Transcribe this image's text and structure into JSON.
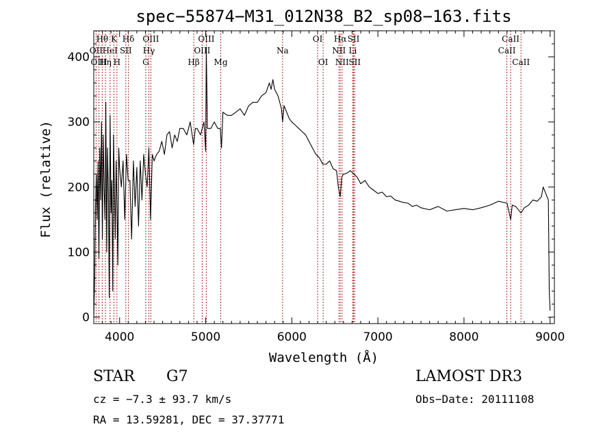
{
  "chart_data": {
    "type": "line",
    "title": "spec−55874−M31_012N38_B2_sp08−163.fits",
    "xlabel": "Wavelength (Å)",
    "ylabel": "Flux (relative)",
    "xlim": [
      3700,
      9050
    ],
    "ylim": [
      -10,
      440
    ],
    "x_ticks": [
      4000,
      5000,
      6000,
      7000,
      8000,
      9000
    ],
    "y_ticks": [
      0,
      100,
      200,
      300,
      400
    ],
    "series": [
      {
        "name": "spectrum",
        "x": [
          3700,
          3710,
          3720,
          3730,
          3740,
          3750,
          3760,
          3770,
          3780,
          3790,
          3800,
          3810,
          3820,
          3830,
          3840,
          3850,
          3860,
          3870,
          3880,
          3890,
          3900,
          3910,
          3920,
          3930,
          3940,
          3950,
          3960,
          3970,
          3980,
          3990,
          4000,
          4020,
          4040,
          4060,
          4080,
          4100,
          4120,
          4140,
          4160,
          4180,
          4200,
          4220,
          4240,
          4260,
          4280,
          4300,
          4320,
          4340,
          4360,
          4380,
          4400,
          4430,
          4460,
          4490,
          4520,
          4550,
          4580,
          4610,
          4640,
          4670,
          4700,
          4740,
          4780,
          4820,
          4860,
          4880,
          4900,
          4940,
          4980,
          5000,
          5007,
          5020,
          5060,
          5100,
          5140,
          5170,
          5183,
          5200,
          5250,
          5300,
          5350,
          5400,
          5450,
          5500,
          5550,
          5600,
          5650,
          5700,
          5740,
          5760,
          5780,
          5800,
          5820,
          5840,
          5860,
          5880,
          5893,
          5910,
          5940,
          5970,
          6000,
          6040,
          6080,
          6120,
          6160,
          6200,
          6240,
          6280,
          6320,
          6360,
          6400,
          6440,
          6480,
          6520,
          6540,
          6563,
          6580,
          6600,
          6620,
          6650,
          6680,
          6720,
          6760,
          6800,
          6850,
          6900,
          6950,
          7000,
          7050,
          7100,
          7150,
          7200,
          7250,
          7300,
          7350,
          7400,
          7450,
          7500,
          7600,
          7700,
          7800,
          7900,
          8000,
          8100,
          8200,
          8300,
          8400,
          8500,
          8542,
          8560,
          8600,
          8662,
          8700,
          8750,
          8800,
          8850,
          8900,
          8920,
          8950,
          8980,
          8990,
          9000
        ],
        "values": [
          0,
          60,
          170,
          220,
          150,
          240,
          90,
          260,
          180,
          300,
          120,
          280,
          200,
          150,
          330,
          100,
          260,
          190,
          30,
          310,
          160,
          210,
          40,
          280,
          200,
          120,
          240,
          170,
          80,
          260,
          230,
          200,
          240,
          150,
          250,
          210,
          210,
          120,
          240,
          170,
          230,
          140,
          240,
          180,
          250,
          220,
          200,
          260,
          150,
          250,
          240,
          250,
          255,
          270,
          250,
          280,
          285,
          260,
          280,
          270,
          290,
          290,
          280,
          300,
          265,
          290,
          290,
          280,
          300,
          255,
          415,
          290,
          290,
          300,
          290,
          290,
          260,
          315,
          310,
          310,
          315,
          320,
          310,
          325,
          330,
          330,
          340,
          345,
          360,
          350,
          365,
          350,
          345,
          340,
          330,
          320,
          300,
          325,
          315,
          305,
          300,
          295,
          290,
          285,
          280,
          270,
          260,
          250,
          245,
          235,
          235,
          240,
          228,
          225,
          200,
          185,
          215,
          220,
          220,
          222,
          225,
          220,
          215,
          205,
          210,
          200,
          195,
          190,
          192,
          185,
          186,
          180,
          178,
          176,
          175,
          170,
          172,
          168,
          165,
          170,
          163,
          165,
          167,
          165,
          168,
          172,
          178,
          175,
          150,
          172,
          170,
          160,
          168,
          172,
          180,
          178,
          185,
          200,
          190,
          180,
          40,
          10
        ]
      }
    ],
    "lines": [
      {
        "label": "Hθ",
        "wl": 3798,
        "row": 1
      },
      {
        "label": "OII",
        "wl": 3727,
        "row": 2
      },
      {
        "label": "OIII",
        "wl": 3760,
        "row": 3
      },
      {
        "label": "Hη",
        "wl": 3835,
        "row": 3
      },
      {
        "label": "HeI",
        "wl": 3889,
        "row": 2
      },
      {
        "label": "K",
        "wl": 3934,
        "row": 1
      },
      {
        "label": "H",
        "wl": 3969,
        "row": 3
      },
      {
        "label": "SII",
        "wl": 4072,
        "row": 2
      },
      {
        "label": "Hδ",
        "wl": 4102,
        "row": 1
      },
      {
        "label": "G",
        "wl": 4304,
        "row": 3
      },
      {
        "label": "OIII",
        "wl": 4363,
        "row": 1
      },
      {
        "label": "Hγ",
        "wl": 4340,
        "row": 2
      },
      {
        "label": "Hβ",
        "wl": 4861,
        "row": 3
      },
      {
        "label": "OIII",
        "wl": 5007,
        "row": 1
      },
      {
        "label": "OIII",
        "wl": 4959,
        "row": 2
      },
      {
        "label": "Mg",
        "wl": 5175,
        "row": 3
      },
      {
        "label": "Na",
        "wl": 5893,
        "row": 2
      },
      {
        "label": "OI",
        "wl": 6300,
        "row": 1
      },
      {
        "label": "OI",
        "wl": 6364,
        "row": 3
      },
      {
        "label": "Hα",
        "wl": 6563,
        "row": 1
      },
      {
        "label": "NII",
        "wl": 6548,
        "row": 2
      },
      {
        "label": "NII",
        "wl": 6584,
        "row": 3
      },
      {
        "label": "SII",
        "wl": 6717,
        "row": 1
      },
      {
        "label": "Li",
        "wl": 6708,
        "row": 2
      },
      {
        "label": "SII",
        "wl": 6731,
        "row": 3
      },
      {
        "label": "CaII",
        "wl": 8542,
        "row": 1
      },
      {
        "label": "CaII",
        "wl": 8498,
        "row": 2
      },
      {
        "label": "CaII",
        "wl": 8662,
        "row": 3
      }
    ]
  },
  "info": {
    "object_class": "STAR",
    "subclass": "G7",
    "survey": "LAMOST DR3",
    "redshift": "cz = −7.3 ± 93.7 km/s",
    "obs_date": "Obs−Date: 20111108",
    "coords": "RA =  13.59281, DEC =  37.37771"
  }
}
